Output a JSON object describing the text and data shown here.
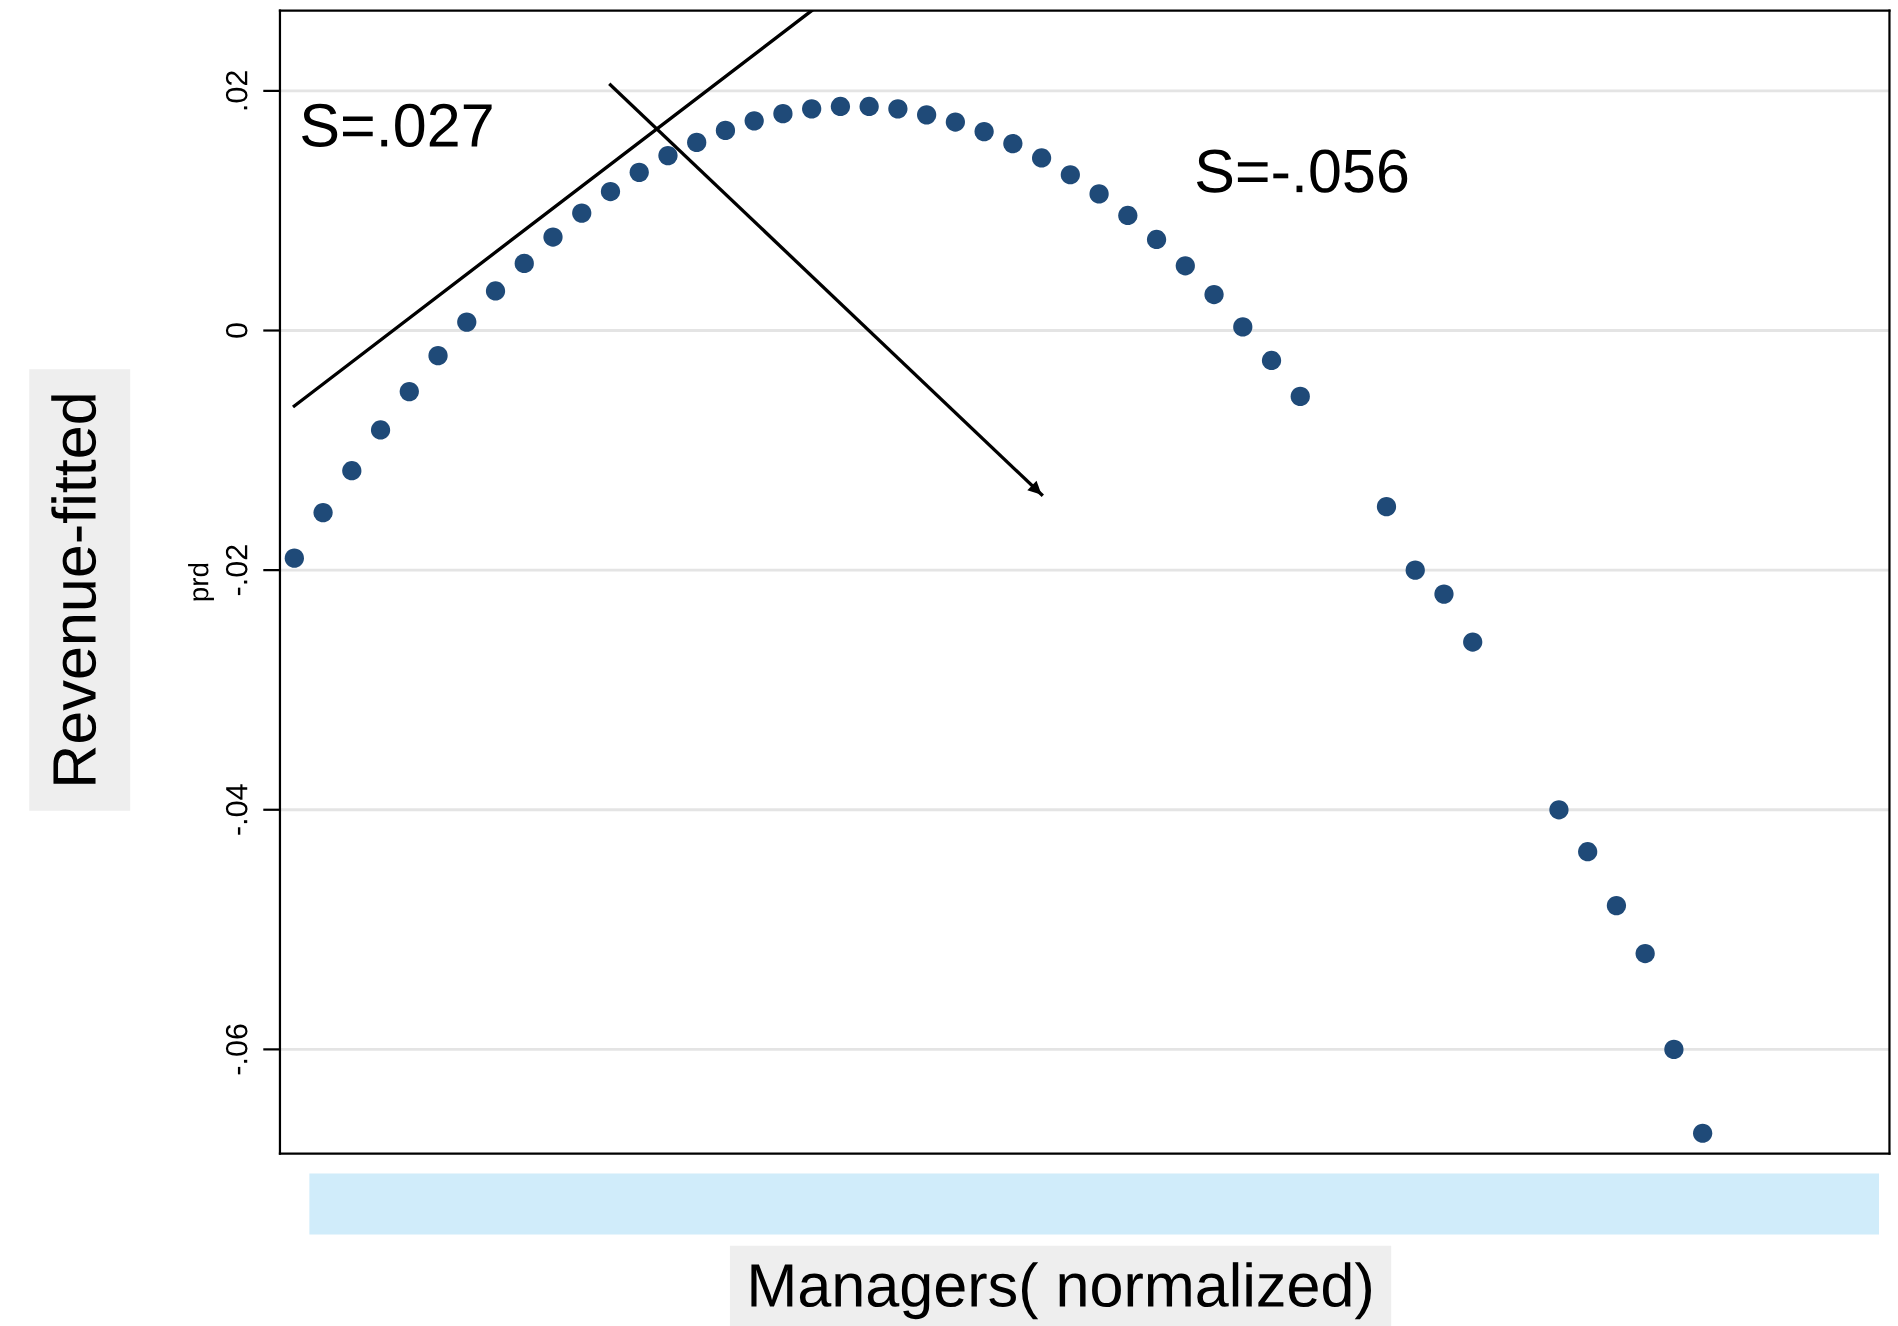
{
  "chart_data": {
    "type": "scatter",
    "ylabel": "prd",
    "xlabel": "Managers( normalized)",
    "annotations": [
      "Revenue-fitted",
      "S=.027",
      "S=-.056"
    ],
    "categories": [
      null,
      null,
      null,
      null,
      null,
      null,
      null,
      null,
      null,
      null,
      null,
      null,
      null,
      null,
      null,
      null,
      null,
      null,
      null,
      null,
      null,
      null,
      null,
      null,
      null,
      null,
      null,
      null,
      null,
      null,
      null,
      null,
      null,
      null,
      null,
      null,
      null,
      null,
      null,
      null,
      null,
      null,
      null,
      null,
      null,
      null,
      null,
      null,
      null,
      null,
      null,
      null,
      null,
      null,
      null,
      null
    ],
    "ylim": [
      -0.0687,
      0.0267
    ],
    "yticks": [
      {
        "value": 0.02,
        "label": ".02"
      },
      {
        "value": 0,
        "label": "0"
      },
      {
        "value": -0.02,
        "label": "-.02"
      },
      {
        "value": -0.04,
        "label": "-.04"
      },
      {
        "value": -0.06,
        "label": "-.06"
      }
    ],
    "grid": "y",
    "marker": "circle",
    "series": [
      {
        "color": "#1f4a78",
        "values": [
          -0.019,
          -0.0152,
          -0.0117,
          -0.0083,
          -0.0051,
          -0.0021,
          0.0007,
          0.0033,
          0.0056,
          0.0078,
          0.0098,
          0.0116,
          0.0132,
          0.0146,
          0.0157,
          0.0167,
          0.0175,
          0.0181,
          0.0185,
          0.0187,
          0.0187,
          0.0185,
          0.018,
          0.0174,
          0.0166,
          0.0156,
          0.0144,
          0.013,
          0.0114,
          0.0096,
          0.0076,
          0.0054,
          0.003,
          0.0003,
          -0.0025,
          -0.0055,
          null,
          null,
          -0.0147,
          -0.02,
          -0.022,
          -0.026,
          null,
          null,
          -0.04,
          -0.0435,
          -0.048,
          -0.052,
          -0.06,
          -0.067,
          null,
          null,
          null,
          null,
          null,
          null
        ]
      },
      {
        "type": "line",
        "color": "#000000",
        "marker": "none",
        "values": [
          -0.0063,
          null,
          null,
          null,
          null,
          null,
          null,
          null,
          null,
          null,
          null,
          null,
          null,
          null,
          null,
          null,
          null,
          null,
          0.0267,
          null,
          null,
          null,
          null,
          null,
          null,
          null,
          null,
          null,
          null,
          null,
          null,
          null,
          null,
          null,
          null,
          null,
          null,
          null,
          null,
          null,
          null,
          null,
          null,
          null,
          null,
          null,
          null,
          null,
          null,
          null,
          null,
          null,
          null,
          null,
          null,
          null
        ]
      },
      {
        "type": "line",
        "color": "#000000",
        "marker": "none",
        "values": [
          null,
          null,
          null,
          null,
          null,
          null,
          null,
          null,
          null,
          null,
          null,
          0.0205,
          null,
          null,
          null,
          null,
          null,
          null,
          null,
          null,
          null,
          null,
          null,
          null,
          null,
          null,
          -0.0137,
          null,
          null,
          null,
          null,
          null,
          null,
          null,
          null,
          null,
          null,
          null,
          null,
          null,
          null,
          null,
          null,
          null,
          null,
          null,
          null,
          null,
          null,
          null,
          null,
          null,
          null,
          null,
          null,
          null
        ]
      }
    ]
  }
}
